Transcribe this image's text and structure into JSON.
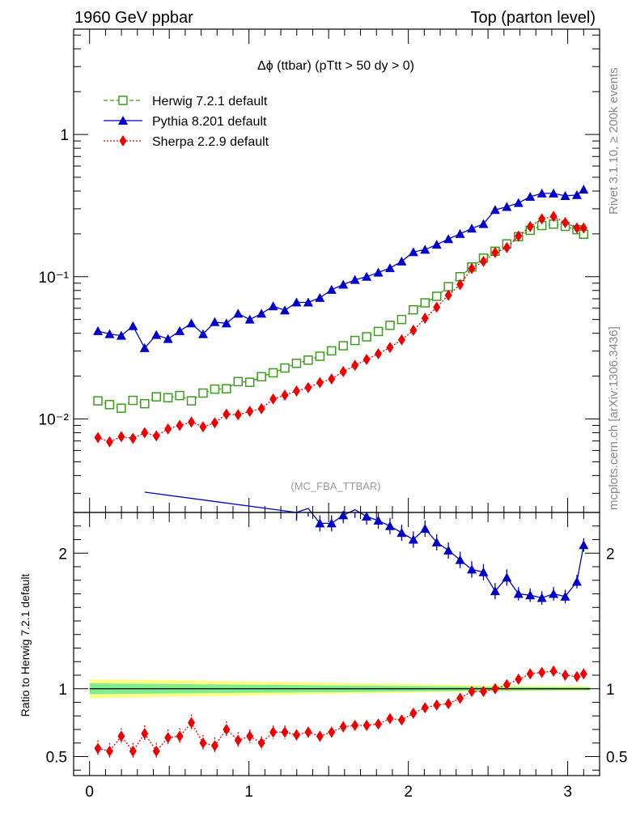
{
  "header": {
    "left": "1960 GeV ppbar",
    "right": "Top (parton level)"
  },
  "side_labels": {
    "rivet": "Rivet 3.1.10, ≥ 200k events",
    "mcplots": "mcplots.cern.ch [arXiv:1306.3436]"
  },
  "plot_title": "Δϕ (ttbar) (pTtt > 50 dy > 0)",
  "analysis_id": "(MC_FBA_TTBAR)",
  "ratio_ylabel": "Ratio to Herwig 7.2.1 default",
  "colors": {
    "herwig": "#3c9d1c",
    "pythia": "#0000cc",
    "sherpa": "#ee0000",
    "band_outer": "#ffff88",
    "band_inner": "#80ee90"
  },
  "chart_data": [
    {
      "type": "line",
      "panel": "main",
      "yscale": "log",
      "xlim": [
        -0.1,
        3.2
      ],
      "ylim": [
        0.0022,
        5.5
      ],
      "yticks": [
        {
          "value": 1,
          "label": "1"
        },
        {
          "value": 0.1,
          "label": "10⁻¹"
        },
        {
          "value": 0.01,
          "label": "10⁻²"
        }
      ],
      "legend_position": "top-left",
      "x": [
        0.0524,
        0.1571,
        0.2618,
        0.3665,
        0.4712,
        0.576,
        0.6807,
        0.7854,
        0.8901,
        0.9948,
        1.0996,
        1.2043,
        1.309,
        1.4137,
        1.5184,
        1.6232,
        1.7279,
        1.8326,
        1.9373,
        2.042,
        2.1468,
        2.2515,
        2.3562,
        2.4609,
        2.5656,
        2.6704,
        2.7751,
        2.8798,
        2.9845,
        3.0892,
        3.1416
      ],
      "series": [
        {
          "name": "Herwig 7.2.1 default",
          "color": "#3c9d1c",
          "marker": "open-square",
          "line": "dashed",
          "x": [
            0.0524,
            0.1257,
            0.199,
            0.2723,
            0.3456,
            0.4189,
            0.4922,
            0.5655,
            0.6388,
            0.7121,
            0.7854,
            0.8587,
            0.932,
            1.0053,
            1.0786,
            1.1519,
            1.2252,
            1.2985,
            1.3718,
            1.4451,
            1.5184,
            1.5917,
            1.665,
            1.7383,
            1.8116,
            1.8849,
            1.9582,
            2.0315,
            2.1048,
            2.1781,
            2.2514,
            2.3247,
            2.398,
            2.4713,
            2.5446,
            2.6179,
            2.6912,
            2.7645,
            2.8378,
            2.9111,
            2.9844,
            3.0577,
            3.1
          ],
          "values": [
            0.0134,
            0.0126,
            0.0119,
            0.0135,
            0.0128,
            0.0143,
            0.0141,
            0.0146,
            0.0134,
            0.0152,
            0.0162,
            0.0163,
            0.0183,
            0.0181,
            0.0198,
            0.0211,
            0.0228,
            0.0246,
            0.0259,
            0.0276,
            0.0301,
            0.0327,
            0.0356,
            0.0378,
            0.0412,
            0.0455,
            0.05,
            0.0585,
            0.0655,
            0.0728,
            0.085,
            0.1,
            0.117,
            0.135,
            0.151,
            0.17,
            0.191,
            0.212,
            0.229,
            0.234,
            0.226,
            0.214,
            0.199
          ]
        },
        {
          "name": "Pythia 8.201 default",
          "color": "#0000cc",
          "marker": "filled-triangle",
          "line": "solid",
          "x": [
            0.0524,
            0.1257,
            0.199,
            0.2723,
            0.3456,
            0.4189,
            0.4922,
            0.5655,
            0.6388,
            0.7121,
            0.7854,
            0.8587,
            0.932,
            1.0053,
            1.0786,
            1.1519,
            1.2252,
            1.2985,
            1.3718,
            1.4451,
            1.5184,
            1.5917,
            1.665,
            1.7383,
            1.8116,
            1.8849,
            1.9582,
            2.0315,
            2.1048,
            2.1781,
            2.2514,
            2.3247,
            2.398,
            2.4713,
            2.5446,
            2.6179,
            2.6912,
            2.7645,
            2.8378,
            2.9111,
            2.9844,
            3.0577,
            3.1
          ],
          "values": [
            0.0415,
            0.0395,
            0.0385,
            0.045,
            0.0315,
            0.039,
            0.0365,
            0.0415,
            0.047,
            0.0395,
            0.048,
            0.047,
            0.055,
            0.05,
            0.055,
            0.062,
            0.058,
            0.066,
            0.066,
            0.071,
            0.081,
            0.088,
            0.095,
            0.1,
            0.107,
            0.115,
            0.128,
            0.149,
            0.155,
            0.168,
            0.184,
            0.2,
            0.218,
            0.235,
            0.295,
            0.31,
            0.33,
            0.365,
            0.385,
            0.385,
            0.37,
            0.375,
            0.41
          ]
        },
        {
          "name": "Sherpa 2.2.9 default",
          "color": "#ee0000",
          "marker": "filled-diamond",
          "line": "dotted",
          "x": [
            0.0524,
            0.1257,
            0.199,
            0.2723,
            0.3456,
            0.4189,
            0.4922,
            0.5655,
            0.6388,
            0.7121,
            0.7854,
            0.8587,
            0.932,
            1.0053,
            1.0786,
            1.1519,
            1.2252,
            1.2985,
            1.3718,
            1.4451,
            1.5184,
            1.5917,
            1.665,
            1.7383,
            1.8116,
            1.8849,
            1.9582,
            2.0315,
            2.1048,
            2.1781,
            2.2514,
            2.3247,
            2.398,
            2.4713,
            2.5446,
            2.6179,
            2.6912,
            2.7645,
            2.8378,
            2.9111,
            2.9844,
            3.0577,
            3.1
          ],
          "values": [
            0.0074,
            0.0069,
            0.0075,
            0.0073,
            0.008,
            0.0076,
            0.0085,
            0.009,
            0.0095,
            0.0088,
            0.0094,
            0.0108,
            0.0107,
            0.0113,
            0.0118,
            0.0138,
            0.0147,
            0.0157,
            0.0166,
            0.018,
            0.0191,
            0.0215,
            0.0238,
            0.0262,
            0.0287,
            0.0318,
            0.036,
            0.042,
            0.051,
            0.061,
            0.074,
            0.088,
            0.114,
            0.128,
            0.148,
            0.16,
            0.193,
            0.225,
            0.255,
            0.265,
            0.24,
            0.22,
            0.22
          ]
        }
      ]
    },
    {
      "type": "line",
      "panel": "ratio",
      "xlim": [
        -0.1,
        3.2
      ],
      "ylim": [
        0.36,
        2.3
      ],
      "xticks": [
        0,
        1,
        2,
        3
      ],
      "yticks": [
        0.5,
        1,
        2
      ],
      "ylabel": "Ratio to Herwig 7.2.1 default",
      "reference_line": 1,
      "uncertainty_band": {
        "x": [
          0.0,
          0.5,
          1.0,
          1.5,
          2.0,
          2.5,
          3.0,
          3.14
        ],
        "outer_low": [
          0.93,
          0.94,
          0.95,
          0.96,
          0.97,
          0.98,
          0.985,
          0.985
        ],
        "outer_high": [
          1.07,
          1.065,
          1.055,
          1.045,
          1.035,
          1.025,
          1.02,
          1.02
        ],
        "inner_low": [
          0.96,
          0.965,
          0.97,
          0.975,
          0.98,
          0.985,
          0.99,
          0.99
        ],
        "inner_high": [
          1.04,
          1.035,
          1.03,
          1.025,
          1.02,
          1.015,
          1.01,
          1.01
        ]
      },
      "series": [
        {
          "name": "Pythia 8.201 default",
          "color": "#0000cc",
          "marker": "filled-triangle",
          "line": "solid",
          "x": [
            0.3456,
            1.2985,
            1.3718,
            1.4451,
            1.5184,
            1.5917,
            1.665,
            1.7383,
            1.8116,
            1.8849,
            1.9582,
            2.0315,
            2.1048,
            2.1781,
            2.2514,
            2.3247,
            2.398,
            2.4713,
            2.5446,
            2.6179,
            2.6912,
            2.7645,
            2.8378,
            2.9111,
            2.9844,
            3.0577,
            3.1
          ],
          "values": [
            2.45,
            2.3,
            2.33,
            2.22,
            2.22,
            2.28,
            2.32,
            2.27,
            2.24,
            2.2,
            2.15,
            2.1,
            2.18,
            2.08,
            2.02,
            1.95,
            1.88,
            1.86,
            1.72,
            1.82,
            1.7,
            1.69,
            1.67,
            1.7,
            1.68,
            1.79,
            2.06
          ],
          "errors": [
            0.15,
            0.06,
            0.06,
            0.06,
            0.06,
            0.06,
            0.06,
            0.06,
            0.06,
            0.06,
            0.06,
            0.06,
            0.06,
            0.06,
            0.06,
            0.06,
            0.06,
            0.06,
            0.06,
            0.06,
            0.05,
            0.05,
            0.05,
            0.05,
            0.05,
            0.05,
            0.05
          ]
        },
        {
          "name": "Sherpa 2.2.9 default",
          "color": "#ee0000",
          "marker": "filled-diamond",
          "line": "dotted",
          "x": [
            0.0524,
            0.1257,
            0.199,
            0.2723,
            0.3456,
            0.4189,
            0.4922,
            0.5655,
            0.6388,
            0.7121,
            0.7854,
            0.8587,
            0.932,
            1.0053,
            1.0786,
            1.1519,
            1.2252,
            1.2985,
            1.3718,
            1.4451,
            1.5184,
            1.5917,
            1.665,
            1.7383,
            1.8116,
            1.8849,
            1.9582,
            2.0315,
            2.1048,
            2.1781,
            2.2514,
            2.3247,
            2.398,
            2.4713,
            2.5446,
            2.6179,
            2.6912,
            2.7645,
            2.8378,
            2.9111,
            2.9844,
            3.0577,
            3.1
          ],
          "values": [
            0.56,
            0.54,
            0.65,
            0.54,
            0.67,
            0.54,
            0.64,
            0.65,
            0.75,
            0.6,
            0.58,
            0.7,
            0.62,
            0.65,
            0.6,
            0.68,
            0.68,
            0.66,
            0.68,
            0.65,
            0.68,
            0.72,
            0.73,
            0.73,
            0.74,
            0.78,
            0.77,
            0.82,
            0.86,
            0.88,
            0.89,
            0.93,
            0.98,
            0.98,
            1.0,
            1.03,
            1.07,
            1.11,
            1.12,
            1.13,
            1.1,
            1.09,
            1.11
          ],
          "errors": [
            0.06,
            0.06,
            0.06,
            0.06,
            0.06,
            0.06,
            0.06,
            0.06,
            0.06,
            0.06,
            0.06,
            0.06,
            0.06,
            0.05,
            0.05,
            0.05,
            0.05,
            0.04,
            0.04,
            0.04,
            0.04,
            0.04,
            0.03,
            0.03,
            0.03,
            0.03,
            0.03,
            0.03,
            0.03,
            0.02,
            0.02,
            0.02,
            0.02,
            0.02,
            0.02,
            0.02,
            0.02,
            0.02,
            0.02,
            0.02,
            0.02,
            0.02,
            0.02
          ]
        }
      ]
    }
  ]
}
